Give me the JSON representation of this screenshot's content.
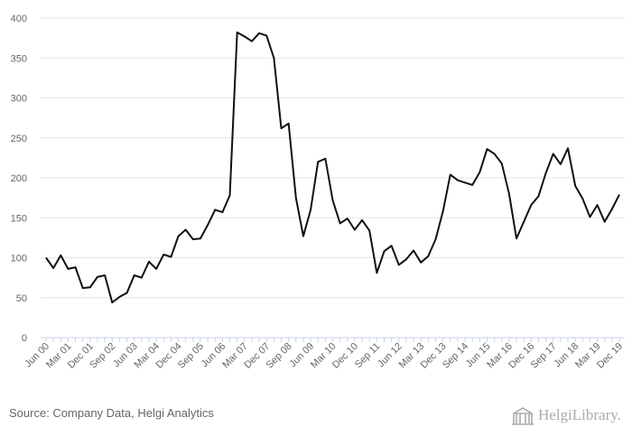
{
  "source": "Source: Company Data, Helgi Analytics",
  "brand": {
    "name": "HelgiLibrary.",
    "icon": "helgi-library-building-icon"
  },
  "colors": {
    "line": "#111111",
    "grid": "#e6e6e6",
    "axis": "#c9d3e6",
    "tick_text": "#666666"
  },
  "chart_data": {
    "type": "line",
    "title": "",
    "xlabel": "",
    "ylabel": "",
    "ylim": [
      0,
      400
    ],
    "yticks": [
      0,
      50,
      100,
      150,
      200,
      250,
      300,
      350,
      400
    ],
    "grid": true,
    "legend": "none",
    "x_tick_labels": [
      "Jun 00",
      "Mar 01",
      "Dec 01",
      "Sep 02",
      "Jun 03",
      "Mar 04",
      "Dec 04",
      "Sep 05",
      "Jun 06",
      "Mar 07",
      "Dec 07",
      "Sep 08",
      "Jun 09",
      "Mar 10",
      "Dec 10",
      "Sep 11",
      "Jun 12",
      "Mar 13",
      "Dec 13",
      "Sep 14",
      "Jun 15",
      "Mar 16",
      "Dec 16",
      "Sep 17",
      "Jun 18",
      "Mar 19",
      "Dec 19"
    ],
    "series": [
      {
        "values": [
          100,
          87,
          103,
          86,
          88,
          62,
          63,
          76,
          78,
          44,
          51,
          56,
          78,
          75,
          95,
          86,
          104,
          101,
          127,
          135,
          123,
          124,
          141,
          160,
          157,
          178,
          382,
          377,
          371,
          381,
          378,
          350,
          262,
          268,
          175,
          127,
          160,
          220,
          224,
          172,
          143,
          149,
          135,
          147,
          134,
          81,
          108,
          115,
          91,
          98,
          109,
          94,
          102,
          123,
          158,
          204,
          197,
          194,
          191,
          207,
          236,
          230,
          218,
          180,
          124,
          145,
          166,
          177,
          206,
          230,
          217,
          237,
          190,
          174,
          151,
          166,
          145,
          161,
          179
        ]
      }
    ]
  }
}
